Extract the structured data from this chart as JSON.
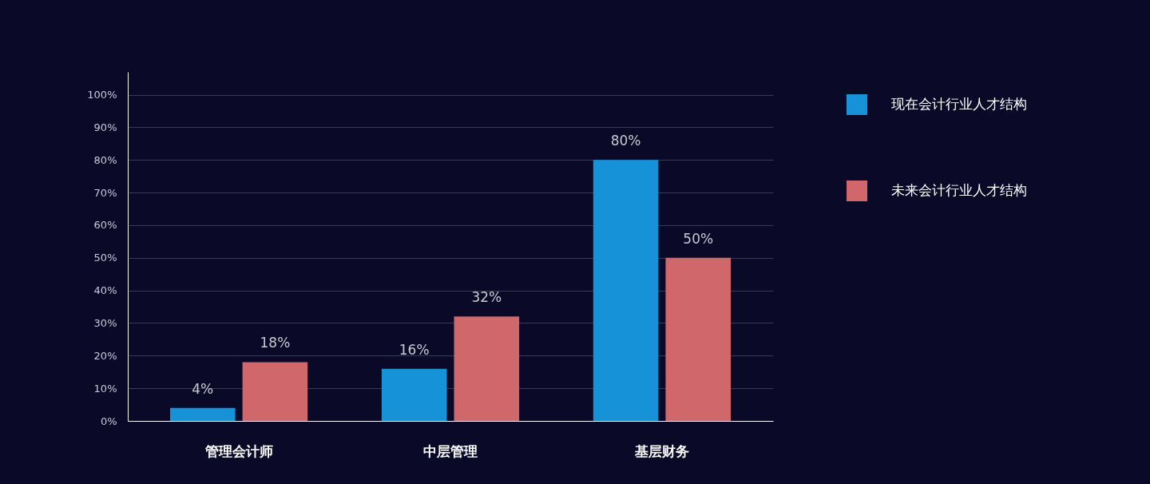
{
  "chart_data": {
    "type": "bar",
    "categories": [
      "管理会计师",
      "中层管理",
      "基层财务"
    ],
    "series": [
      {
        "name": "现在会计行业人才结构",
        "color": "#1592d8",
        "values": [
          4,
          16,
          80
        ],
        "value_labels": [
          "4%",
          "16%",
          "80%"
        ]
      },
      {
        "name": "未来会计行业人才结构",
        "color": "#d0686b",
        "values": [
          18,
          32,
          50
        ],
        "value_labels": [
          "18%",
          "32%",
          "50%"
        ]
      }
    ],
    "ylim": [
      0,
      107
    ],
    "yticks": [
      {
        "value": 0,
        "label": "0%"
      },
      {
        "value": 10,
        "label": "10%"
      },
      {
        "value": 20,
        "label": "20%"
      },
      {
        "value": 30,
        "label": "30%"
      },
      {
        "value": 40,
        "label": "40%"
      },
      {
        "value": 50,
        "label": "50%"
      },
      {
        "value": 60,
        "label": "60%"
      },
      {
        "value": 70,
        "label": "70%"
      },
      {
        "value": 80,
        "label": "80%"
      },
      {
        "value": 90,
        "label": "90%"
      },
      {
        "value": 100,
        "label": "100%"
      }
    ],
    "grid": "y",
    "legend": "right"
  }
}
